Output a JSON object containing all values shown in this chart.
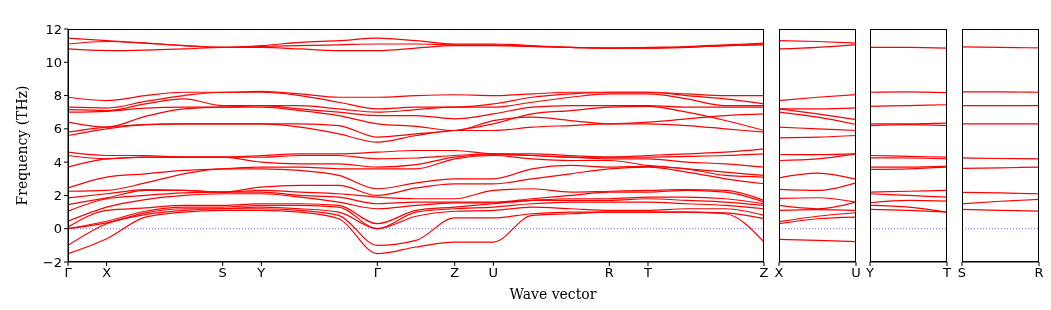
{
  "chart_data": [
    {
      "type": "line",
      "xlabel": "Wave vector",
      "ylabel": "Frequency (THz)",
      "categories": [
        "Γ",
        "X",
        null,
        null,
        "S",
        "Y",
        null,
        null,
        "Γ",
        null,
        "Z",
        "U",
        null,
        null,
        "R",
        "T",
        null,
        null,
        "Z"
      ],
      "ylim": [
        -2,
        12
      ],
      "yticks": [
        {
          "value": -2,
          "label": "−2"
        },
        0,
        2,
        4,
        6,
        8,
        10,
        12
      ],
      "marker": "none",
      "line_style": "solid",
      "ref_lines": [
        {
          "axis": "y",
          "value": 0,
          "color": "#0000ff",
          "line_style": "dotted"
        }
      ],
      "series": [
        {
          "color": "#ff0000",
          "values": [
            -1.5,
            -0.6,
            0.7,
            1.0,
            1.1,
            1.1,
            1.0,
            0.6,
            -1.5,
            -1.1,
            -0.8,
            -0.8,
            0.8,
            0.9,
            1.0,
            1.0,
            1.0,
            0.9,
            -0.8
          ]
        },
        {
          "color": "#ff0000",
          "values": [
            -1.0,
            0.3,
            0.85,
            1.1,
            1.2,
            1.2,
            1.1,
            0.8,
            -1.0,
            -0.7,
            0.65,
            0.65,
            0.9,
            1.0,
            1.0,
            1.0,
            1.0,
            0.95,
            0.6
          ]
        },
        {
          "color": "#ff0000",
          "values": [
            0,
            0.35,
            0.95,
            1.2,
            1.2,
            1.3,
            1.2,
            1.0,
            0,
            0.75,
            1.05,
            1.1,
            1.3,
            1.2,
            1.1,
            1.1,
            1.2,
            1.2,
            0.8
          ]
        },
        {
          "color": "#ff0000",
          "values": [
            0,
            0.45,
            1.05,
            1.3,
            1.3,
            1.4,
            1.4,
            1.3,
            0,
            1.0,
            1.2,
            1.3,
            1.5,
            1.6,
            1.6,
            1.6,
            1.5,
            1.4,
            1.2
          ]
        },
        {
          "color": "#ff0000",
          "values": [
            0.1,
            1.1,
            1.25,
            1.4,
            1.4,
            1.5,
            1.5,
            1.4,
            0.3,
            1.1,
            1.3,
            1.5,
            1.7,
            1.7,
            1.7,
            1.8,
            1.7,
            1.6,
            1.4
          ]
        },
        {
          "color": "#ff0000",
          "values": [
            0.45,
            1.3,
            1.75,
            2.0,
            2.1,
            2.1,
            1.9,
            1.6,
            1.2,
            1.4,
            1.55,
            1.55,
            1.7,
            1.8,
            1.8,
            1.9,
            1.9,
            1.8,
            1.5
          ]
        },
        {
          "color": "#ff0000",
          "values": [
            1.05,
            1.8,
            2.0,
            2.15,
            2.2,
            2.2,
            2.0,
            1.9,
            1.5,
            1.6,
            1.6,
            1.6,
            1.8,
            2.0,
            2.2,
            2.2,
            2.3,
            2.2,
            1.6
          ]
        },
        {
          "color": "#ff0000",
          "values": [
            1.45,
            1.85,
            2.3,
            2.3,
            2.2,
            2.3,
            2.2,
            2.1,
            1.9,
            1.8,
            1.8,
            2.3,
            2.4,
            2.2,
            2.25,
            2.3,
            2.35,
            2.3,
            1.7
          ]
        },
        {
          "color": "#ff0000",
          "values": [
            1.85,
            2.1,
            2.35,
            2.3,
            2.2,
            2.5,
            2.6,
            2.6,
            2.0,
            2.45,
            2.7,
            2.7,
            3.0,
            3.3,
            3.6,
            3.7,
            3.4,
            3.0,
            2.7
          ]
        },
        {
          "color": "#ff0000",
          "values": [
            2.25,
            2.3,
            2.75,
            3.3,
            3.6,
            3.6,
            3.5,
            3.2,
            2.4,
            2.75,
            3.0,
            3.0,
            3.6,
            3.8,
            3.7,
            3.75,
            3.6,
            3.2,
            3.1
          ]
        },
        {
          "color": "#ff0000",
          "values": [
            2.45,
            3.1,
            3.3,
            3.5,
            3.6,
            3.7,
            3.7,
            3.6,
            3.6,
            3.6,
            4.2,
            4.4,
            4.2,
            4.1,
            4.1,
            3.8,
            3.6,
            3.4,
            3.2
          ]
        },
        {
          "color": "#ff0000",
          "values": [
            3.7,
            4.2,
            4.3,
            4.3,
            4.3,
            4.0,
            3.9,
            3.9,
            3.7,
            3.85,
            4.3,
            4.45,
            4.4,
            4.3,
            4.2,
            4.2,
            4.0,
            3.9,
            3.7
          ]
        },
        {
          "color": "#ff0000",
          "values": [
            4.4,
            4.2,
            4.3,
            4.3,
            4.3,
            4.3,
            4.4,
            4.4,
            4.2,
            4.25,
            4.4,
            4.5,
            4.4,
            4.3,
            4.3,
            4.3,
            4.35,
            4.4,
            4.5
          ]
        },
        {
          "color": "#ff0000",
          "values": [
            4.6,
            4.4,
            4.4,
            4.3,
            4.3,
            4.4,
            4.5,
            4.5,
            4.6,
            4.7,
            4.7,
            4.5,
            4.5,
            4.4,
            4.3,
            4.4,
            4.5,
            4.6,
            4.8
          ]
        },
        {
          "color": "#ff0000",
          "values": [
            5.6,
            6.0,
            6.25,
            6.3,
            6.3,
            6.3,
            6.1,
            5.7,
            5.2,
            5.6,
            5.9,
            5.9,
            6.1,
            6.2,
            6.3,
            6.3,
            6.2,
            6.0,
            5.8
          ]
        },
        {
          "color": "#ff0000",
          "values": [
            5.8,
            6.1,
            6.25,
            6.3,
            6.3,
            6.3,
            6.3,
            6.2,
            5.5,
            5.7,
            5.9,
            6.3,
            6.9,
            7.1,
            7.3,
            7.35,
            7.0,
            6.5,
            5.9
          ]
        },
        {
          "color": "#ff0000",
          "values": [
            6.4,
            6.1,
            6.75,
            7.2,
            7.3,
            7.3,
            7.1,
            6.8,
            6.3,
            6.15,
            5.9,
            6.5,
            6.7,
            6.5,
            6.3,
            6.4,
            6.6,
            6.8,
            6.9
          ]
        },
        {
          "color": "#ff0000",
          "values": [
            7.0,
            7.05,
            7.25,
            7.3,
            7.3,
            7.4,
            7.2,
            7.0,
            6.8,
            6.8,
            6.6,
            6.9,
            7.3,
            7.4,
            7.4,
            7.4,
            7.3,
            7.3,
            7.3
          ]
        },
        {
          "color": "#ff0000",
          "values": [
            7.15,
            7.1,
            7.5,
            7.8,
            7.4,
            7.4,
            7.4,
            7.2,
            7.0,
            7.15,
            7.3,
            7.3,
            7.6,
            7.9,
            8.1,
            8.1,
            7.8,
            7.4,
            7.4
          ]
        },
        {
          "color": "#ff0000",
          "values": [
            7.3,
            7.25,
            7.65,
            8.0,
            8.2,
            8.2,
            8.0,
            7.6,
            7.2,
            7.3,
            7.3,
            7.5,
            7.9,
            8.1,
            8.2,
            8.2,
            8.0,
            7.8,
            7.5
          ]
        },
        {
          "color": "#ff0000",
          "values": [
            7.9,
            7.7,
            8.0,
            8.2,
            8.2,
            8.25,
            8.1,
            7.9,
            7.9,
            8.0,
            8.05,
            8.0,
            8.1,
            8.2,
            8.2,
            8.2,
            8.1,
            8.0,
            8.0
          ]
        },
        {
          "color": "#ff0000",
          "values": [
            10.8,
            10.7,
            10.73,
            10.8,
            10.9,
            10.9,
            10.8,
            10.7,
            10.7,
            10.85,
            11.0,
            11.0,
            10.95,
            10.9,
            10.85,
            10.85,
            10.9,
            11.0,
            11.05
          ]
        },
        {
          "color": "#ff0000",
          "values": [
            11.1,
            11.25,
            11.15,
            11.0,
            10.9,
            10.95,
            11.0,
            11.05,
            11.1,
            11.1,
            11.05,
            11.05,
            10.95,
            10.9,
            10.85,
            10.85,
            10.9,
            11.0,
            11.1
          ]
        },
        {
          "color": "#ff0000",
          "values": [
            11.45,
            11.3,
            11.15,
            11.0,
            10.9,
            11.0,
            11.2,
            11.3,
            11.45,
            11.3,
            11.1,
            11.1,
            11.0,
            10.9,
            10.85,
            10.9,
            10.95,
            11.05,
            11.15
          ]
        }
      ]
    },
    {
      "type": "line",
      "categories": [
        "X",
        null,
        "U"
      ],
      "ylim": [
        -2,
        12
      ],
      "tick_labels": "x",
      "marker": "none",
      "line_style": "solid",
      "ref_lines": [
        {
          "axis": "y",
          "value": 0,
          "color": "#0000ff",
          "line_style": "dotted"
        }
      ],
      "series": [
        {
          "color": "#ff0000",
          "values": [
            -0.64,
            -0.7,
            -0.78
          ]
        },
        {
          "color": "#ff0000",
          "values": [
            0.3,
            0.6,
            0.7
          ]
        },
        {
          "color": "#ff0000",
          "values": [
            0.42,
            0.75,
            0.96
          ]
        },
        {
          "color": "#ff0000",
          "values": [
            1.1,
            1.15,
            1.1
          ]
        },
        {
          "color": "#ff0000",
          "values": [
            1.4,
            1.2,
            1.6
          ]
        },
        {
          "color": "#ff0000",
          "values": [
            1.82,
            1.86,
            1.6
          ]
        },
        {
          "color": "#ff0000",
          "values": [
            2.36,
            2.3,
            2.76
          ]
        },
        {
          "color": "#ff0000",
          "values": [
            3.06,
            3.34,
            2.96
          ]
        },
        {
          "color": "#ff0000",
          "values": [
            4.1,
            4.2,
            4.5
          ]
        },
        {
          "color": "#ff0000",
          "values": [
            4.46,
            4.45,
            4.5
          ]
        },
        {
          "color": "#ff0000",
          "values": [
            5.46,
            5.5,
            5.6
          ]
        },
        {
          "color": "#ff0000",
          "values": [
            6.1,
            6.0,
            5.9
          ]
        },
        {
          "color": "#ff0000",
          "values": [
            7.0,
            6.7,
            6.26
          ]
        },
        {
          "color": "#ff0000",
          "values": [
            7.2,
            6.9,
            6.56
          ]
        },
        {
          "color": "#ff0000",
          "values": [
            7.2,
            7.2,
            7.26
          ]
        },
        {
          "color": "#ff0000",
          "values": [
            7.7,
            7.9,
            8.06
          ]
        },
        {
          "color": "#ff0000",
          "values": [
            10.8,
            10.9,
            11.06
          ]
        },
        {
          "color": "#ff0000",
          "values": [
            11.3,
            11.25,
            11.16
          ]
        }
      ]
    },
    {
      "type": "line",
      "categories": [
        "Y",
        null,
        "T"
      ],
      "ylim": [
        -2,
        12
      ],
      "tick_labels": "x",
      "marker": "none",
      "line_style": "solid",
      "ref_lines": [
        {
          "axis": "y",
          "value": 0,
          "color": "#0000ff",
          "line_style": "dotted"
        }
      ],
      "series": [
        {
          "color": "#ff0000",
          "values": [
            1.16,
            1.1,
            1.0
          ]
        },
        {
          "color": "#ff0000",
          "values": [
            1.4,
            1.3,
            1.0
          ]
        },
        {
          "color": "#ff0000",
          "values": [
            1.56,
            1.7,
            1.66
          ]
        },
        {
          "color": "#ff0000",
          "values": [
            2.1,
            2.0,
            1.9
          ]
        },
        {
          "color": "#ff0000",
          "values": [
            2.2,
            2.25,
            2.3
          ]
        },
        {
          "color": "#ff0000",
          "values": [
            3.56,
            3.6,
            3.7
          ]
        },
        {
          "color": "#ff0000",
          "values": [
            3.7,
            3.7,
            3.76
          ]
        },
        {
          "color": "#ff0000",
          "values": [
            4.26,
            4.25,
            4.2
          ]
        },
        {
          "color": "#ff0000",
          "values": [
            4.4,
            4.35,
            4.3
          ]
        },
        {
          "color": "#ff0000",
          "values": [
            6.2,
            6.25,
            6.2
          ]
        },
        {
          "color": "#ff0000",
          "values": [
            6.3,
            6.3,
            6.35
          ]
        },
        {
          "color": "#ff0000",
          "values": [
            7.35,
            7.4,
            7.45
          ]
        },
        {
          "color": "#ff0000",
          "values": [
            8.2,
            8.22,
            8.18
          ]
        },
        {
          "color": "#ff0000",
          "values": [
            10.9,
            10.9,
            10.85
          ]
        }
      ]
    },
    {
      "type": "line",
      "categories": [
        "S",
        null,
        "R"
      ],
      "ylim": [
        -2,
        12
      ],
      "tick_labels": "x",
      "marker": "none",
      "line_style": "solid",
      "ref_lines": [
        {
          "axis": "y",
          "value": 0,
          "color": "#0000ff",
          "line_style": "dotted"
        }
      ],
      "series": [
        {
          "color": "#ff0000",
          "values": [
            1.16,
            1.1,
            1.06
          ]
        },
        {
          "color": "#ff0000",
          "values": [
            1.5,
            1.65,
            1.76
          ]
        },
        {
          "color": "#ff0000",
          "values": [
            2.18,
            2.15,
            2.1
          ]
        },
        {
          "color": "#ff0000",
          "values": [
            3.62,
            3.66,
            3.7
          ]
        },
        {
          "color": "#ff0000",
          "values": [
            4.26,
            4.22,
            4.2
          ]
        },
        {
          "color": "#ff0000",
          "values": [
            6.3,
            6.3,
            6.3
          ]
        },
        {
          "color": "#ff0000",
          "values": [
            7.4,
            7.4,
            7.4
          ]
        },
        {
          "color": "#ff0000",
          "values": [
            8.22,
            8.22,
            8.2
          ]
        },
        {
          "color": "#ff0000",
          "values": [
            10.92,
            10.9,
            10.86
          ]
        }
      ]
    }
  ]
}
